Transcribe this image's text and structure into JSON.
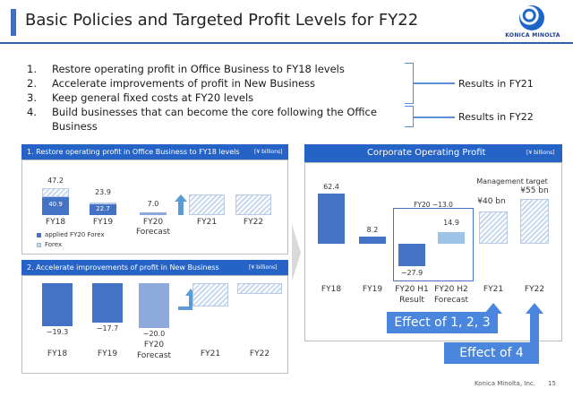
{
  "header": {
    "title": "Basic Policies and Targeted Profit Levels for FY22",
    "logo_text": "KONICA MINOLTA"
  },
  "policies": [
    {
      "num": "1.",
      "text_line1": "Restore operating profit in Office Business to FY18 levels",
      "text_line2": ""
    },
    {
      "num": "2.",
      "text_line1": "Accelerate improvements of profit in New Business",
      "text_line2": ""
    },
    {
      "num": "3.",
      "text_line1": "Keep general fixed costs at FY20 levels",
      "text_line2": ""
    },
    {
      "num": "4.",
      "text_line1": "Build businesses that can become the core following the Office",
      "text_line2": "Business"
    }
  ],
  "results": {
    "fy21": "Results in FY21",
    "fy22": "Results in FY22"
  },
  "panel_office": {
    "title": "1. Restore operating profit in Office Business to FY18 levels",
    "unit": "[¥ billions]",
    "bars": [
      {
        "label": "FY18",
        "total": "47.2",
        "inner": "40.9"
      },
      {
        "label": "FY19",
        "total": "23.9",
        "inner": "22.7"
      },
      {
        "label_line1": "FY20",
        "label_line2": "Forecast",
        "total": "7.0"
      },
      {
        "label": "FY21"
      },
      {
        "label": "FY22"
      }
    ],
    "legend_line1": "applied FY20 Forex",
    "legend_line2": "Forex",
    "chart_values": {
      "FY18": 47.2,
      "FY19": 23.9,
      "FY20": 7.0
    }
  },
  "panel_new": {
    "title": "2. Accelerate improvements of profit in New Business",
    "unit": "[¥ billions]",
    "bars": [
      {
        "label": "FY18",
        "value": "−19.3"
      },
      {
        "label": "FY19",
        "value": "−17.7"
      },
      {
        "label_line1": "FY20",
        "label_line2": "Forecast",
        "value": "−20.0"
      },
      {
        "label": "FY21"
      },
      {
        "label": "FY22"
      }
    ],
    "chart_values": {
      "FY18": -19.3,
      "FY19": -17.7,
      "FY20": -20.0
    }
  },
  "panel_corp": {
    "title": "Corporate Operating Profit",
    "unit": "[¥ billions]",
    "fy18": {
      "label": "FY18",
      "value": "62.4"
    },
    "fy19": {
      "label": "FY19",
      "value": "8.2"
    },
    "h1": {
      "label_line1": "FY20 H1",
      "label_line2": "Result",
      "value": "−27.9"
    },
    "h2": {
      "label_line1": "FY20 H2",
      "label_line2": "Forecast",
      "value": "14.9"
    },
    "fy20_total": "FY20 −13.0",
    "fy21": {
      "label": "FY21",
      "value": "¥40 bn"
    },
    "fy22": {
      "label": "FY22",
      "value": "¥55 bn"
    },
    "mgmt_target": "Management target",
    "chart_values": {
      "FY18": 62.4,
      "FY19": 8.2,
      "FY20 H1": -27.9,
      "FY20 H2": 14.9,
      "FY21": 40,
      "FY22": 55
    }
  },
  "effects": {
    "effect123": "Effect of 1, 2, 3",
    "effect4": "Effect of 4"
  },
  "footer": {
    "company": "Konica Minolta, Inc.",
    "page": "15"
  },
  "colors": {
    "accent": "#2563c6",
    "bar_dark": "#4472c4",
    "bar_light": "#9dc3e6",
    "effect_box": "#4a86dd"
  }
}
